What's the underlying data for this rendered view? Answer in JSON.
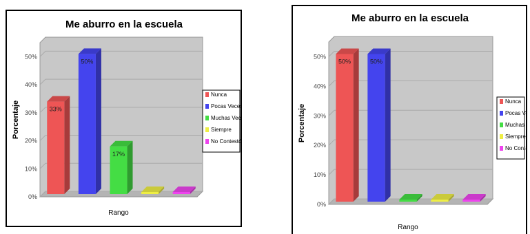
{
  "legend_items": [
    {
      "label": "Nunca",
      "color": "#ee5555"
    },
    {
      "label": "Pocas Veces",
      "color": "#4444ee"
    },
    {
      "label": "Muchas Veces",
      "color": "#44dd44"
    },
    {
      "label": "Siempre",
      "color": "#eeee44"
    },
    {
      "label": "No Contestó",
      "color": "#ee44ee"
    }
  ],
  "legend_items_clipped": [
    {
      "label": "Nunca",
      "color": "#ee5555"
    },
    {
      "label": "Pocas Vece",
      "color": "#4444ee"
    },
    {
      "label": "Muchas Ve",
      "color": "#44dd44"
    },
    {
      "label": "Siempre",
      "color": "#eeee44"
    },
    {
      "label": "No Contest",
      "color": "#ee44ee"
    }
  ],
  "chart_data": [
    {
      "type": "bar",
      "title": "Me aburro en la escuela",
      "xlabel": "Rango",
      "ylabel": "Porcentaje",
      "yticks": [
        "0%",
        "10%",
        "20%",
        "30%",
        "40%",
        "50%"
      ],
      "ylim": [
        0,
        55
      ],
      "grid": true,
      "legend_position": "right",
      "categories": [
        "Nunca",
        "Pocas Veces",
        "Muchas Veces",
        "Siempre",
        "No Contestó"
      ],
      "values": [
        33,
        50,
        17,
        0,
        0
      ],
      "data_labels": [
        "33%",
        "50%",
        "17%",
        "",
        ""
      ]
    },
    {
      "type": "bar",
      "title": "Me aburro en la escuela",
      "xlabel": "Rango",
      "ylabel": "Porcentaje",
      "yticks": [
        "0%",
        "10%",
        "20%",
        "30%",
        "40%",
        "50%"
      ],
      "ylim": [
        0,
        55
      ],
      "grid": true,
      "legend_position": "right",
      "categories": [
        "Nunca",
        "Pocas Veces",
        "Muchas Veces",
        "Siempre",
        "No Contestó"
      ],
      "values": [
        50,
        50,
        0,
        0,
        0
      ],
      "data_labels": [
        "50%",
        "50%",
        "",
        "",
        ""
      ]
    }
  ]
}
